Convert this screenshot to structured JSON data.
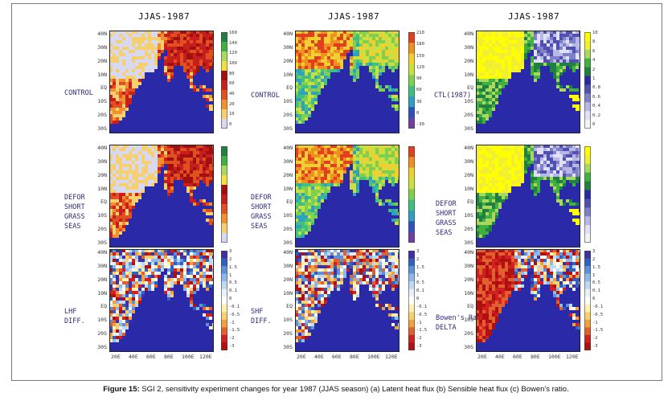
{
  "figure": {
    "caption_label": "Figure 15:",
    "caption_text": " SGI 2, sensitivity experiment changes for year 1987 (JJAS season) (a) Latent heat flux (b) Sensible heat flux (c) Bowen's ratio."
  },
  "panels": [
    {
      "title": "JJAS-1987",
      "row_labels": [
        "CONTROL",
        "DEFOR\nSHORT\nGRASS\nSEAS",
        "LHF\nDIFF."
      ],
      "colorbar_top": [
        "160",
        "140",
        "120",
        "100",
        "80",
        "60",
        "40",
        "20",
        "10",
        "0"
      ],
      "colorbar_diff": [
        "3",
        "2",
        "1.5",
        "1",
        "0.5",
        "0.1",
        "0",
        "-0.1",
        "-0.5",
        "-1",
        "-1.5",
        "-2",
        "-3"
      ]
    },
    {
      "title": "JJAS-1987",
      "row_labels": [
        "CONTROL",
        "DEFOR\nSHORT\nGRASS\nSEAS",
        "SHF\nDIFF."
      ],
      "colorbar_top": [
        "210",
        "180",
        "150",
        "120",
        "90",
        "60",
        "30",
        "0",
        "-30"
      ],
      "colorbar_diff": [
        "3",
        "2",
        "1.5",
        "1",
        "0.5",
        "0.1",
        "0",
        "-0.1",
        "-0.5",
        "-1",
        "-1.5",
        "-2",
        "-3"
      ]
    },
    {
      "title": "JJAS-1987",
      "row_labels": [
        "CTL(1987)",
        "DEFOR\nSHORT\nGRASS\nSEAS",
        "Bowen's Ratio\nDELTA"
      ],
      "colorbar_top": [
        "10",
        "8",
        "6",
        "4",
        "2",
        "1",
        "0.8",
        "0.6",
        "0.4",
        "0.2",
        "0"
      ],
      "colorbar_diff": [
        "3",
        "2",
        "1.5",
        "1",
        "0.5",
        "0.1",
        "0",
        "-0.1",
        "-0.5",
        "-1",
        "-1.5",
        "-2",
        "-3"
      ]
    }
  ],
  "axes": {
    "lat_ticks": [
      "40N",
      "30N",
      "20N",
      "10N",
      "EQ",
      "10S",
      "20S",
      "30S"
    ],
    "lon_ticks": [
      "20E",
      "40E",
      "60E",
      "80E",
      "100E",
      "120E"
    ]
  },
  "colors": {
    "ocean": "#2a2aa8",
    "lhf_scale": [
      "#d8d8f0",
      "#f4d070",
      "#f09030",
      "#e05020",
      "#c81e1e",
      "#a01010",
      "#f0e040",
      "#a8d860",
      "#40b040",
      "#208040"
    ],
    "shf_scale": [
      "#7040a0",
      "#3050c0",
      "#30a0c0",
      "#40c080",
      "#80d050",
      "#c8e040",
      "#f0d030",
      "#f09020",
      "#e04020"
    ],
    "bowen_scale": [
      "#f4f4f4",
      "#e0e0f8",
      "#b8b8e8",
      "#8080c8",
      "#5050b0",
      "#2a2aa8",
      "#208040",
      "#40b040",
      "#a8d860",
      "#f0f030",
      "#ffff00"
    ],
    "diff_scale": [
      "#4030a0",
      "#3060c0",
      "#6090d8",
      "#90b8e8",
      "#c0d8f0",
      "#e8f0f8",
      "#ffffff",
      "#fff0b0",
      "#f8d070",
      "#f0a040",
      "#e06030",
      "#d02020",
      "#b01010"
    ]
  }
}
